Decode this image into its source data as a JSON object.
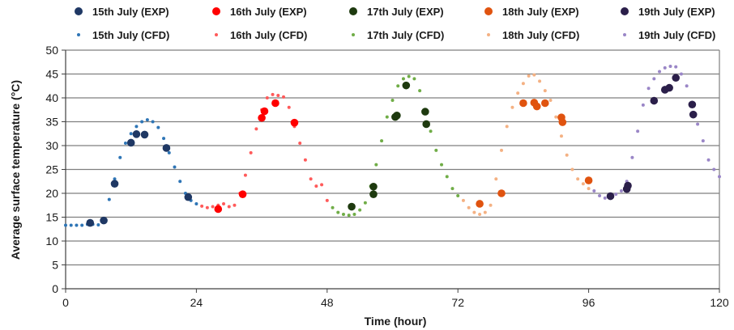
{
  "chart_data": {
    "type": "scatter",
    "xlabel": "Time (hour)",
    "ylabel": "Average surface temperature (°C)",
    "xlim": [
      0,
      120
    ],
    "ylim": [
      0,
      50
    ],
    "xticks": [
      0,
      24,
      48,
      72,
      96,
      120
    ],
    "yticks": [
      0,
      5,
      10,
      15,
      20,
      25,
      30,
      35,
      40,
      45,
      50
    ],
    "grid": "horizontal",
    "legend_position": "top",
    "series": [
      {
        "name": "15th July (EXP)",
        "color": "#1f3864",
        "marker": "large-dot",
        "points": [
          [
            4.5,
            13.8
          ],
          [
            7,
            14.3
          ],
          [
            9,
            22
          ],
          [
            12,
            30.6
          ],
          [
            13,
            32.4
          ],
          [
            14.5,
            32.3
          ],
          [
            18.5,
            29.5
          ],
          [
            22.5,
            19.2
          ]
        ]
      },
      {
        "name": "16th July (EXP)",
        "color": "#ff0000",
        "marker": "large-dot",
        "points": [
          [
            28,
            16.7
          ],
          [
            32.5,
            19.8
          ],
          [
            36,
            35.8
          ],
          [
            36.5,
            37.2
          ],
          [
            38.5,
            38.9
          ],
          [
            42,
            34.8
          ]
        ]
      },
      {
        "name": "17th July (EXP)",
        "color": "#1e3a0f",
        "marker": "large-dot",
        "points": [
          [
            52.5,
            17.2
          ],
          [
            56.5,
            19.8
          ],
          [
            56.5,
            21.4
          ],
          [
            60.5,
            36
          ],
          [
            60.8,
            36.3
          ],
          [
            62.5,
            42.6
          ],
          [
            66,
            37.1
          ],
          [
            66.2,
            34.5
          ]
        ]
      },
      {
        "name": "18th July (EXP)",
        "color": "#e0530f",
        "marker": "large-dot",
        "points": [
          [
            76,
            17.8
          ],
          [
            80,
            20
          ],
          [
            84,
            38.9
          ],
          [
            86,
            39
          ],
          [
            86.5,
            38.2
          ],
          [
            88,
            38.9
          ],
          [
            91,
            35.9
          ],
          [
            91.2,
            34.9
          ],
          [
            96,
            22.7
          ]
        ]
      },
      {
        "name": "19th July (EXP)",
        "color": "#2b1f4a",
        "marker": "large-dot",
        "points": [
          [
            100,
            19.4
          ],
          [
            103,
            20.9
          ],
          [
            103.2,
            21.6
          ],
          [
            108,
            39.4
          ],
          [
            110,
            41.7
          ],
          [
            110.8,
            42.1
          ],
          [
            112,
            44.2
          ],
          [
            115,
            38.6
          ],
          [
            115.2,
            36.5
          ]
        ]
      },
      {
        "name": "15th July (CFD)",
        "color": "#2e75b6",
        "marker": "small-dot",
        "points": [
          [
            0,
            13.3
          ],
          [
            1,
            13.3
          ],
          [
            2,
            13.3
          ],
          [
            3,
            13.3
          ],
          [
            4,
            13.5
          ],
          [
            5,
            13.5
          ],
          [
            6,
            13.4
          ],
          [
            7,
            14.5
          ],
          [
            8,
            18.7
          ],
          [
            9,
            23
          ],
          [
            10,
            27.5
          ],
          [
            11,
            30.5
          ],
          [
            12,
            32.5
          ],
          [
            13,
            34
          ],
          [
            14,
            35
          ],
          [
            15,
            35.4
          ],
          [
            16,
            35
          ],
          [
            17,
            33.8
          ],
          [
            18,
            31.5
          ],
          [
            19,
            28.5
          ],
          [
            20,
            25.5
          ],
          [
            21,
            22.5
          ],
          [
            22,
            20
          ],
          [
            23,
            18.5
          ],
          [
            24,
            17.8
          ]
        ]
      },
      {
        "name": "16th July (CFD)",
        "color": "#ff5a5a",
        "marker": "small-dot",
        "points": [
          [
            25,
            17.3
          ],
          [
            26,
            17
          ],
          [
            27,
            17.2
          ],
          [
            28,
            17.5
          ],
          [
            29,
            17.8
          ],
          [
            30,
            17.2
          ],
          [
            31,
            17.5
          ],
          [
            32,
            20
          ],
          [
            33,
            23.8
          ],
          [
            34,
            28.5
          ],
          [
            35,
            33.5
          ],
          [
            36,
            37.5
          ],
          [
            37,
            40
          ],
          [
            38,
            40.7
          ],
          [
            39,
            40.5
          ],
          [
            40,
            40.2
          ],
          [
            41,
            38
          ],
          [
            42,
            34
          ],
          [
            43,
            30.5
          ],
          [
            44,
            27
          ],
          [
            45,
            23
          ],
          [
            46,
            21.5
          ],
          [
            47,
            21.8
          ],
          [
            48,
            18.5
          ]
        ]
      },
      {
        "name": "17th July (CFD)",
        "color": "#70ad47",
        "marker": "small-dot",
        "points": [
          [
            49,
            17
          ],
          [
            50,
            16
          ],
          [
            51,
            15.6
          ],
          [
            52,
            15.4
          ],
          [
            53,
            15.6
          ],
          [
            54,
            16.5
          ],
          [
            55,
            18
          ],
          [
            56,
            21.5
          ],
          [
            57,
            26
          ],
          [
            58,
            31
          ],
          [
            59,
            36
          ],
          [
            60,
            39.5
          ],
          [
            61,
            42.5
          ],
          [
            62,
            44
          ],
          [
            63,
            44.5
          ],
          [
            64,
            44
          ],
          [
            65,
            41.5
          ],
          [
            66,
            37.5
          ],
          [
            67,
            33
          ],
          [
            68,
            29
          ],
          [
            69,
            26
          ],
          [
            70,
            23.5
          ],
          [
            71,
            21
          ],
          [
            72,
            19.5
          ]
        ]
      },
      {
        "name": "18th July (CFD)",
        "color": "#f4b183",
        "marker": "small-dot",
        "points": [
          [
            73,
            18.5
          ],
          [
            74,
            17
          ],
          [
            75,
            16
          ],
          [
            76,
            15.6
          ],
          [
            77,
            16
          ],
          [
            78,
            17.5
          ],
          [
            79,
            23
          ],
          [
            80,
            29
          ],
          [
            81,
            34
          ],
          [
            82,
            38
          ],
          [
            83,
            41
          ],
          [
            84,
            43
          ],
          [
            85,
            44.6
          ],
          [
            86,
            44.8
          ],
          [
            87,
            43.5
          ],
          [
            88,
            41.5
          ],
          [
            89,
            39.5
          ],
          [
            90,
            36
          ],
          [
            91,
            32
          ],
          [
            92,
            28
          ],
          [
            93,
            25
          ],
          [
            94,
            23
          ],
          [
            95,
            22
          ],
          [
            96,
            21
          ]
        ]
      },
      {
        "name": "19th July (CFD)",
        "color": "#9a86c7",
        "marker": "small-dot",
        "points": [
          [
            97,
            20.5
          ],
          [
            98,
            19.5
          ],
          [
            99,
            19
          ],
          [
            100,
            19.2
          ],
          [
            101,
            19.8
          ],
          [
            102,
            20.5
          ],
          [
            103,
            22.5
          ],
          [
            104,
            27.5
          ],
          [
            105,
            33
          ],
          [
            106,
            38.5
          ],
          [
            107,
            42
          ],
          [
            108,
            44
          ],
          [
            109,
            45.5
          ],
          [
            110,
            46.3
          ],
          [
            111,
            46.6
          ],
          [
            112,
            46.5
          ],
          [
            113,
            45
          ],
          [
            114,
            42.5
          ],
          [
            115,
            38.5
          ],
          [
            116,
            34.5
          ],
          [
            117,
            31
          ],
          [
            118,
            27
          ],
          [
            119,
            25
          ],
          [
            120,
            23.5
          ],
          [
            121,
            23.5
          ]
        ]
      }
    ]
  }
}
